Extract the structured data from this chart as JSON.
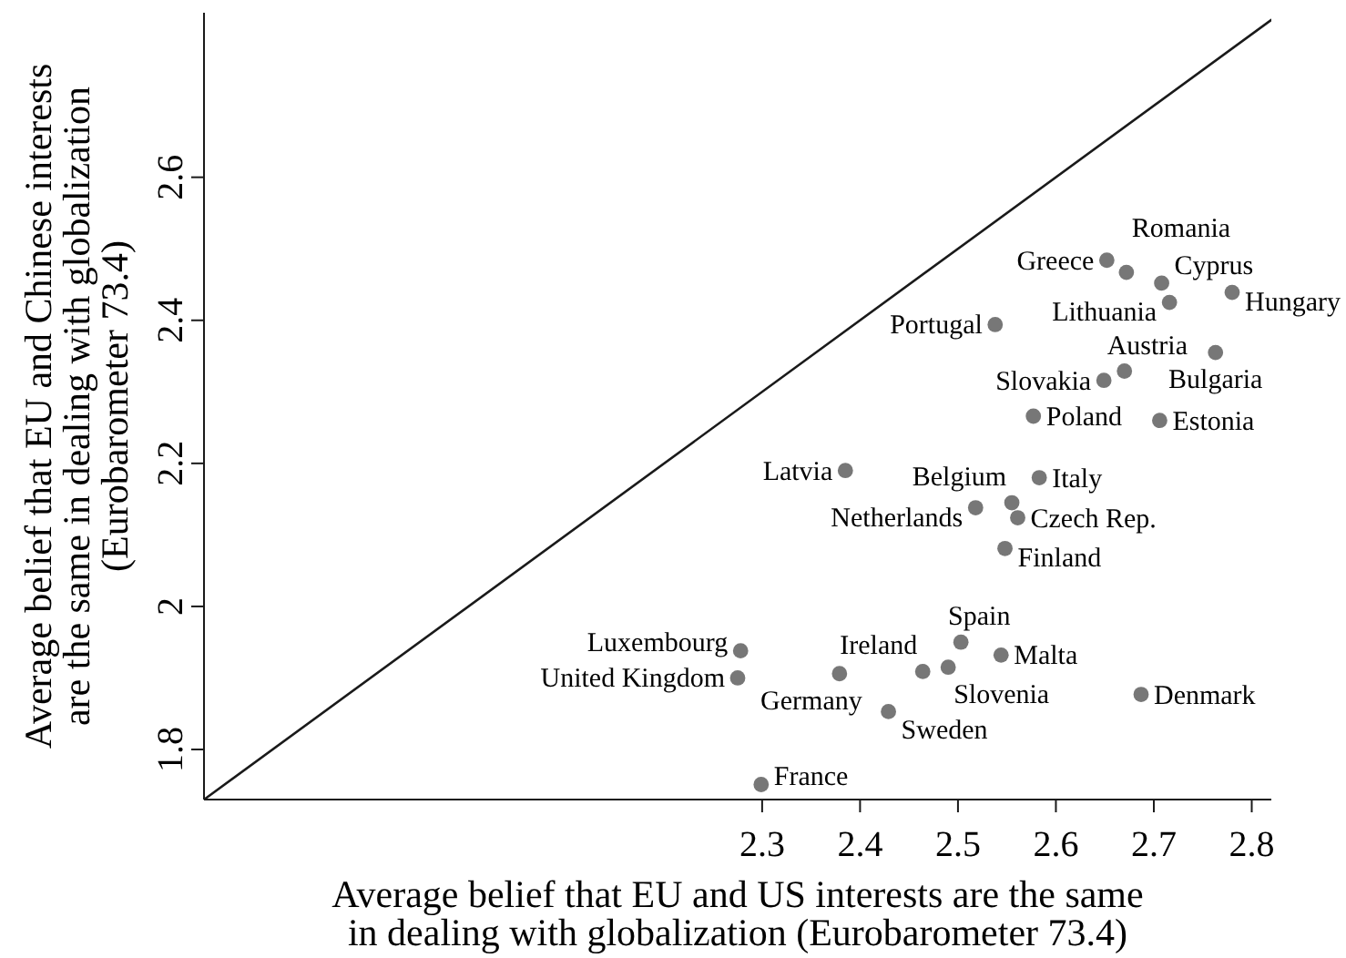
{
  "chart_data": {
    "type": "scatter",
    "xlabel": "Average belief that EU and US interests are the same in dealing with globalization (Eurobarometer 73.4)",
    "ylabel": "Average belief that EU and Chinese interests are the same in dealing with globalization (Eurobarometer 73.4)",
    "xlim": [
      1.73,
      2.82
    ],
    "ylim": [
      1.73,
      2.83
    ],
    "xticks": [
      2.3,
      2.4,
      2.5,
      2.6,
      2.7,
      2.8
    ],
    "yticks": [
      1.8,
      2,
      2.2,
      2.4,
      2.6
    ],
    "marker": "circle",
    "series": [
      {
        "type": "line",
        "color": "#1a1a1a",
        "marker": "none",
        "line_style": "solid",
        "x": [
          1.73,
          2.82
        ],
        "values": [
          1.73,
          2.82
        ]
      },
      {
        "color": "#777777",
        "x": [
          2.652,
          2.672,
          2.708,
          2.78,
          2.716,
          2.538,
          2.763,
          2.67,
          2.649,
          2.577,
          2.706,
          2.385,
          2.583,
          2.518,
          2.555,
          2.561,
          2.548,
          2.278,
          2.275,
          2.503,
          2.544,
          2.49,
          2.464,
          2.379,
          2.429,
          2.687,
          2.299
        ],
        "values": [
          2.484,
          2.467,
          2.452,
          2.439,
          2.425,
          2.394,
          2.355,
          2.329,
          2.316,
          2.266,
          2.26,
          2.19,
          2.18,
          2.138,
          2.145,
          2.124,
          2.081,
          1.938,
          1.9,
          1.95,
          1.932,
          1.915,
          1.909,
          1.906,
          1.853,
          1.877,
          1.751
        ]
      }
    ],
    "annotations": [
      {
        "text": "Greece",
        "x": 2.652,
        "y": 2.484
      },
      {
        "text": "Romania",
        "x": 2.672,
        "y": 2.467
      },
      {
        "text": "Cyprus",
        "x": 2.708,
        "y": 2.452
      },
      {
        "text": "Hungary",
        "x": 2.78,
        "y": 2.439
      },
      {
        "text": "Lithuania",
        "x": 2.716,
        "y": 2.425
      },
      {
        "text": "Portugal",
        "x": 2.538,
        "y": 2.394
      },
      {
        "text": "Bulgaria",
        "x": 2.763,
        "y": 2.355
      },
      {
        "text": "Austria",
        "x": 2.67,
        "y": 2.329
      },
      {
        "text": "Slovakia",
        "x": 2.649,
        "y": 2.316
      },
      {
        "text": "Poland",
        "x": 2.577,
        "y": 2.266
      },
      {
        "text": "Estonia",
        "x": 2.706,
        "y": 2.26
      },
      {
        "text": "Latvia",
        "x": 2.385,
        "y": 2.19
      },
      {
        "text": "Italy",
        "x": 2.583,
        "y": 2.18
      },
      {
        "text": "Netherlands",
        "x": 2.518,
        "y": 2.138
      },
      {
        "text": "Belgium",
        "x": 2.555,
        "y": 2.145
      },
      {
        "text": "Czech Rep.",
        "x": 2.561,
        "y": 2.124
      },
      {
        "text": "Finland",
        "x": 2.548,
        "y": 2.081
      },
      {
        "text": "Luxembourg",
        "x": 2.278,
        "y": 1.938
      },
      {
        "text": "United Kingdom",
        "x": 2.275,
        "y": 1.9
      },
      {
        "text": "Spain",
        "x": 2.503,
        "y": 1.95
      },
      {
        "text": "Malta",
        "x": 2.544,
        "y": 1.932
      },
      {
        "text": "Slovenia",
        "x": 2.49,
        "y": 1.915
      },
      {
        "text": "Ireland",
        "x": 2.464,
        "y": 1.909
      },
      {
        "text": "Germany",
        "x": 2.379,
        "y": 1.906
      },
      {
        "text": "Sweden",
        "x": 2.429,
        "y": 1.853
      },
      {
        "text": "Denmark",
        "x": 2.687,
        "y": 1.877
      },
      {
        "text": "France",
        "x": 2.299,
        "y": 1.751
      }
    ]
  }
}
